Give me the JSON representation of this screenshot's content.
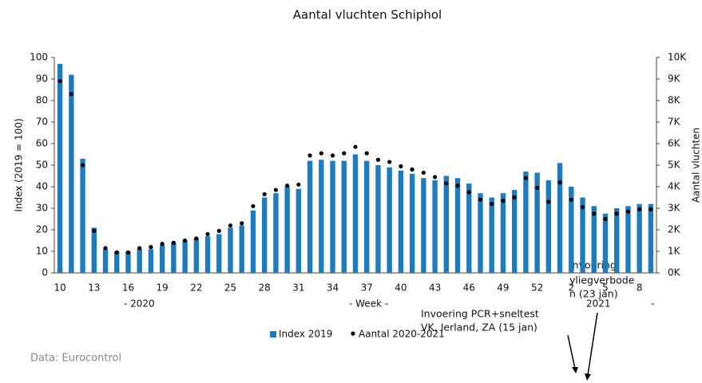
{
  "chart_data": {
    "type": "bar",
    "title": "Aantal vluchten Schiphol",
    "y_label": "Index (2019 = 100)",
    "y2_label": "Aantal vluchten",
    "categories": [
      "10",
      null,
      null,
      "13",
      null,
      null,
      "16",
      null,
      null,
      "19",
      null,
      null,
      "22",
      null,
      null,
      "25",
      null,
      null,
      "28",
      null,
      null,
      "31",
      null,
      null,
      "34",
      null,
      null,
      "37",
      null,
      null,
      "40",
      null,
      null,
      "43",
      null,
      null,
      "46",
      null,
      null,
      "49",
      null,
      null,
      "52",
      null,
      null,
      "2",
      null,
      null,
      "5",
      null,
      null,
      "8",
      null
    ],
    "series": [
      {
        "name": "Index 2019",
        "color": "#1f7bbf",
        "values": [
          97,
          92,
          53,
          21,
          11,
          10,
          10,
          11,
          11,
          13,
          14,
          15,
          16,
          17,
          18,
          21,
          22,
          29,
          35,
          37,
          40,
          39,
          52,
          52.5,
          52,
          52,
          55,
          52,
          50,
          49,
          47.5,
          46,
          44,
          43,
          45,
          44,
          41.5,
          37,
          35,
          37,
          38.5,
          47,
          46.5,
          43,
          51,
          40,
          35,
          31,
          27.5,
          30,
          31,
          32,
          32
        ]
      },
      {
        "name": "Aantal 2020-2021",
        "color": "#000000",
        "axis": "y2",
        "values": [
          8900,
          8300,
          5000,
          1950,
          1150,
          950,
          950,
          1150,
          1200,
          1350,
          1400,
          1500,
          1600,
          1800,
          1950,
          2200,
          2300,
          3100,
          3650,
          3850,
          4050,
          4100,
          5450,
          5550,
          5450,
          5550,
          5850,
          5550,
          5250,
          5150,
          4950,
          4800,
          4650,
          4450,
          4150,
          4050,
          3750,
          3400,
          3200,
          3350,
          3500,
          4400,
          3950,
          3300,
          4200,
          3400,
          3050,
          2750,
          2500,
          2750,
          2850,
          2950,
          2950
        ]
      }
    ],
    "ylim": [
      0,
      100
    ],
    "yticks": [
      0,
      10,
      20,
      30,
      40,
      50,
      60,
      70,
      80,
      90,
      100
    ],
    "y2lim": [
      0,
      10000
    ],
    "y2ticks": [
      {
        "value": 0,
        "label": "0K"
      },
      {
        "value": 1000,
        "label": "1K"
      },
      {
        "value": 2000,
        "label": "2K"
      },
      {
        "value": 3000,
        "label": "3K"
      },
      {
        "value": 4000,
        "label": "4K"
      },
      {
        "value": 5000,
        "label": "5K"
      },
      {
        "value": 6000,
        "label": "6K"
      },
      {
        "value": 7000,
        "label": "7K"
      },
      {
        "value": 8000,
        "label": "8K"
      },
      {
        "value": 9000,
        "label": "9K"
      },
      {
        "value": 10000,
        "label": "10K"
      }
    ],
    "annotations": [
      "- 2020",
      "- Week -",
      "2021",
      "-",
      "Invoering",
      "yliegverbode",
      "n (23 jan)",
      "Invoering PCR+sneltest",
      "VK, Ierland, ZA (15 jan)",
      "Data: Eurocontrol"
    ],
    "legend": "bottom"
  }
}
